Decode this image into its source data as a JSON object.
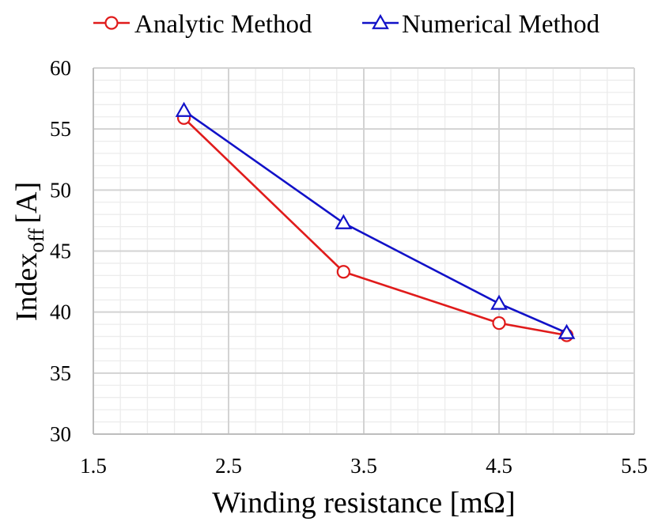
{
  "chart_data": {
    "type": "line",
    "title": "",
    "xlabel": "Winding resistance [mΩ]",
    "ylabel_main": "Index",
    "ylabel_sub": "off",
    "ylabel_unit": "[A]",
    "xlim": [
      1.5,
      5.5
    ],
    "ylim": [
      30,
      60
    ],
    "xticks": [
      1.5,
      2.5,
      3.5,
      4.5,
      5.5
    ],
    "yticks": [
      30,
      35,
      40,
      45,
      50,
      55,
      60
    ],
    "xtick_labels": [
      "1.5",
      "2.5",
      "3.5",
      "4.5",
      "5.5"
    ],
    "ytick_labels": [
      "30",
      "35",
      "40",
      "45",
      "50",
      "55",
      "60"
    ],
    "grid": true,
    "legend_position": "top",
    "series": [
      {
        "name": "Analytic Method",
        "color": "#e01b1b",
        "marker": "circle",
        "x": [
          2.17,
          3.35,
          4.5,
          5.0
        ],
        "y": [
          55.9,
          43.3,
          39.1,
          38.1
        ]
      },
      {
        "name": "Numerical Method",
        "color": "#1111c8",
        "marker": "triangle",
        "x": [
          2.17,
          3.35,
          4.5,
          5.0
        ],
        "y": [
          56.5,
          47.3,
          40.7,
          38.3
        ]
      }
    ]
  }
}
